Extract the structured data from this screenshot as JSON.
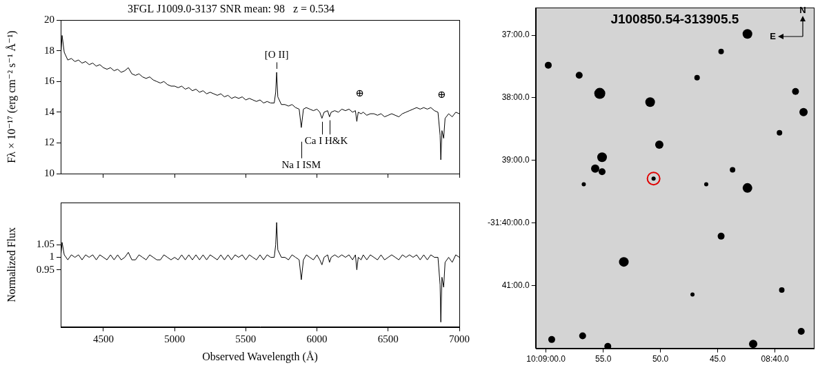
{
  "chart_data": [
    {
      "type": "line",
      "title": "3FGL J1009.0-3137 SNR mean: 98   z = 0.534",
      "y_label": "Fλ × 10⁻¹⁷ (erg cm⁻² s⁻¹ Å⁻¹)",
      "color": "#000000",
      "x": [
        4200,
        4210,
        4225,
        4250,
        4275,
        4300,
        4325,
        4350,
        4375,
        4400,
        4425,
        4450,
        4475,
        4500,
        4525,
        4550,
        4575,
        4600,
        4625,
        4650,
        4675,
        4700,
        4725,
        4750,
        4775,
        4800,
        4825,
        4850,
        4875,
        4900,
        4925,
        4950,
        4975,
        5000,
        5025,
        5050,
        5075,
        5100,
        5125,
        5150,
        5175,
        5200,
        5225,
        5250,
        5275,
        5300,
        5325,
        5350,
        5375,
        5400,
        5425,
        5450,
        5475,
        5500,
        5525,
        5550,
        5575,
        5600,
        5625,
        5650,
        5675,
        5700,
        5710,
        5717,
        5725,
        5750,
        5775,
        5800,
        5825,
        5850,
        5875,
        5890,
        5905,
        5925,
        5950,
        5975,
        6000,
        6020,
        6035,
        6050,
        6075,
        6088,
        6100,
        6125,
        6150,
        6175,
        6200,
        6225,
        6250,
        6270,
        6280,
        6290,
        6310,
        6325,
        6350,
        6375,
        6400,
        6425,
        6450,
        6475,
        6500,
        6525,
        6550,
        6575,
        6600,
        6625,
        6650,
        6675,
        6700,
        6725,
        6750,
        6775,
        6800,
        6825,
        6850,
        6865,
        6870,
        6878,
        6890,
        6900,
        6925,
        6950,
        6975,
        7000
      ],
      "values": [
        17.6,
        19.0,
        17.9,
        17.4,
        17.5,
        17.3,
        17.4,
        17.2,
        17.3,
        17.1,
        17.2,
        17.0,
        17.1,
        16.9,
        16.8,
        16.9,
        16.7,
        16.8,
        16.6,
        16.7,
        16.9,
        16.5,
        16.4,
        16.5,
        16.3,
        16.2,
        16.3,
        16.1,
        16.0,
        15.9,
        16.0,
        15.8,
        15.7,
        15.7,
        15.6,
        15.7,
        15.5,
        15.6,
        15.4,
        15.5,
        15.3,
        15.4,
        15.2,
        15.3,
        15.2,
        15.1,
        15.2,
        15.0,
        15.1,
        14.9,
        15.0,
        14.9,
        15.0,
        14.8,
        14.9,
        14.8,
        14.7,
        14.8,
        14.6,
        14.7,
        14.6,
        14.6,
        15.3,
        16.6,
        15.0,
        14.5,
        14.5,
        14.4,
        14.5,
        14.3,
        14.2,
        13.0,
        14.2,
        14.3,
        14.2,
        14.1,
        14.2,
        14.0,
        13.6,
        14.0,
        14.1,
        13.7,
        14.0,
        14.1,
        14.0,
        14.2,
        14.1,
        14.2,
        14.0,
        14.1,
        13.4,
        14.0,
        13.9,
        14.0,
        13.8,
        13.9,
        13.9,
        13.8,
        13.9,
        13.7,
        13.8,
        13.9,
        13.8,
        13.7,
        13.9,
        14.0,
        14.1,
        14.2,
        14.3,
        14.2,
        14.3,
        14.2,
        14.3,
        14.1,
        14.0,
        12.5,
        10.9,
        12.8,
        12.3,
        13.6,
        13.9,
        13.7,
        14.0,
        13.9
      ],
      "xlim": [
        4200,
        7000
      ],
      "xticks": [
        4500,
        5000,
        5500,
        6000,
        6500,
        7000
      ],
      "ylim": [
        10,
        20
      ],
      "yticks": [
        10,
        12,
        14,
        16,
        18,
        20
      ],
      "grid": false,
      "tick_labels": "y",
      "annotations": [
        {
          "text": "[O II]",
          "x": 5717,
          "y": 17.7,
          "marks": [
            5717
          ]
        },
        {
          "text": "Ca I H&K",
          "x": 6065,
          "y": 12.1,
          "marks": [
            6035,
            6088
          ]
        },
        {
          "text": "Na I ISM",
          "x": 5890,
          "y": 10.55,
          "marks": [
            5890
          ]
        },
        {
          "text": "⊕",
          "x": 6300,
          "y": 15.2,
          "marks": []
        },
        {
          "text": "⊕",
          "x": 6875,
          "y": 15.1,
          "marks": []
        }
      ]
    },
    {
      "type": "line",
      "x_label": "Observed Wavelength (Å)",
      "y_label": "Normalized Flux",
      "color": "#000000",
      "x": [
        4200,
        4210,
        4225,
        4250,
        4275,
        4300,
        4325,
        4350,
        4375,
        4400,
        4425,
        4450,
        4475,
        4500,
        4525,
        4550,
        4575,
        4600,
        4625,
        4650,
        4675,
        4700,
        4725,
        4750,
        4775,
        4800,
        4825,
        4850,
        4875,
        4900,
        4925,
        4950,
        4975,
        5000,
        5025,
        5050,
        5075,
        5100,
        5125,
        5150,
        5175,
        5200,
        5225,
        5250,
        5275,
        5300,
        5325,
        5350,
        5375,
        5400,
        5425,
        5450,
        5475,
        5500,
        5525,
        5550,
        5575,
        5600,
        5625,
        5650,
        5675,
        5700,
        5710,
        5717,
        5725,
        5750,
        5775,
        5800,
        5825,
        5850,
        5875,
        5890,
        5905,
        5925,
        5950,
        5975,
        6000,
        6020,
        6035,
        6050,
        6075,
        6088,
        6100,
        6125,
        6150,
        6175,
        6200,
        6225,
        6250,
        6270,
        6280,
        6290,
        6310,
        6325,
        6350,
        6375,
        6400,
        6425,
        6450,
        6475,
        6500,
        6525,
        6550,
        6575,
        6600,
        6625,
        6650,
        6675,
        6700,
        6725,
        6750,
        6775,
        6800,
        6825,
        6850,
        6865,
        6870,
        6878,
        6890,
        6900,
        6925,
        6950,
        6975,
        7000
      ],
      "values": [
        1.0,
        1.06,
        1.01,
        0.99,
        1.01,
        1.0,
        1.01,
        0.99,
        1.01,
        1.0,
        1.01,
        0.99,
        1.01,
        1.0,
        0.99,
        1.01,
        0.99,
        1.01,
        0.99,
        1.0,
        1.02,
        0.99,
        0.99,
        1.01,
        1.0,
        0.99,
        1.01,
        1.0,
        0.99,
        0.99,
        1.01,
        1.0,
        0.99,
        1.0,
        0.99,
        1.01,
        0.99,
        1.01,
        0.99,
        1.01,
        0.99,
        1.01,
        0.99,
        1.01,
        1.0,
        0.99,
        1.01,
        0.99,
        1.01,
        0.99,
        1.01,
        1.0,
        1.01,
        0.99,
        1.01,
        1.0,
        0.99,
        1.01,
        0.99,
        1.01,
        1.0,
        1.0,
        1.05,
        1.14,
        1.03,
        1.0,
        1.0,
        0.99,
        1.01,
        1.0,
        0.99,
        0.91,
        0.99,
        1.01,
        1.0,
        0.99,
        1.01,
        0.99,
        0.97,
        1.0,
        1.01,
        0.98,
        1.0,
        1.01,
        1.0,
        1.01,
        1.0,
        1.01,
        0.99,
        1.01,
        0.95,
        1.0,
        0.99,
        1.01,
        0.99,
        1.01,
        1.0,
        0.99,
        1.01,
        0.99,
        1.0,
        1.01,
        1.0,
        0.99,
        1.01,
        1.0,
        1.01,
        1.0,
        1.01,
        0.99,
        1.01,
        0.99,
        1.01,
        1.0,
        1.0,
        0.89,
        0.74,
        0.92,
        0.88,
        0.98,
        1.0,
        0.98,
        1.01,
        1.0
      ],
      "xlim": [
        4200,
        7000
      ],
      "xticks": [
        4500,
        5000,
        5500,
        6000,
        6500,
        7000
      ],
      "ylim": [
        0.72,
        1.22
      ],
      "yticks": [
        0.95,
        1,
        1.05
      ],
      "grid": false
    },
    {
      "type": "scatter",
      "title": "J100850.54-313905.5",
      "color": "#000000",
      "x": [
        42.4,
        59.8,
        57.1,
        55.3,
        50.9,
        50.1,
        55.1,
        55.7,
        55.1,
        50.6,
        42.4,
        46.8,
        44.7,
        38.2,
        37.5,
        39.6,
        53.2,
        44.7,
        41.9,
        59.5,
        56.8,
        54.6,
        37.7,
        39.4,
        56.7,
        46.0,
        43.7,
        47.2
      ],
      "values": [
        -36.98,
        -37.48,
        -37.64,
        -37.93,
        -38.07,
        -38.75,
        -38.95,
        -39.13,
        -39.18,
        -39.29,
        -39.44,
        -37.68,
        -37.26,
        -37.9,
        -38.23,
        -38.56,
        -40.62,
        -40.21,
        -41.93,
        -41.86,
        -41.8,
        -41.97,
        -41.73,
        -41.07,
        -39.38,
        -39.38,
        -39.15,
        -41.14
      ],
      "sizes": [
        7,
        5,
        5,
        8,
        7,
        6,
        7,
        6,
        5,
        3,
        7,
        4,
        4,
        5,
        6,
        4,
        7,
        5,
        6,
        5,
        5,
        5,
        5,
        4,
        3,
        3,
        4,
        3
      ],
      "xlim": [
        60.9,
        36.6
      ],
      "xticks": [
        {
          "value": 60,
          "label": "10:09:00.0"
        },
        {
          "value": 55,
          "label": "55.0"
        },
        {
          "value": 50,
          "label": "50.0"
        },
        {
          "value": 45,
          "label": "45.0"
        },
        {
          "value": 40,
          "label": "08:40.0"
        }
      ],
      "ylim": [
        -42.0,
        -36.56
      ],
      "yticks": [
        {
          "value": -37,
          "label": "37:00.0"
        },
        {
          "value": -38,
          "label": "38:00.0"
        },
        {
          "value": -39,
          "label": "39:00.0"
        },
        {
          "value": -40,
          "label": "-31:40:00.0"
        },
        {
          "value": -41,
          "label": "41:00.0"
        }
      ],
      "target": {
        "x": 50.6,
        "y": -39.29,
        "color": "#e00000"
      },
      "compass": [
        "N",
        "E"
      ],
      "grid": false
    }
  ]
}
